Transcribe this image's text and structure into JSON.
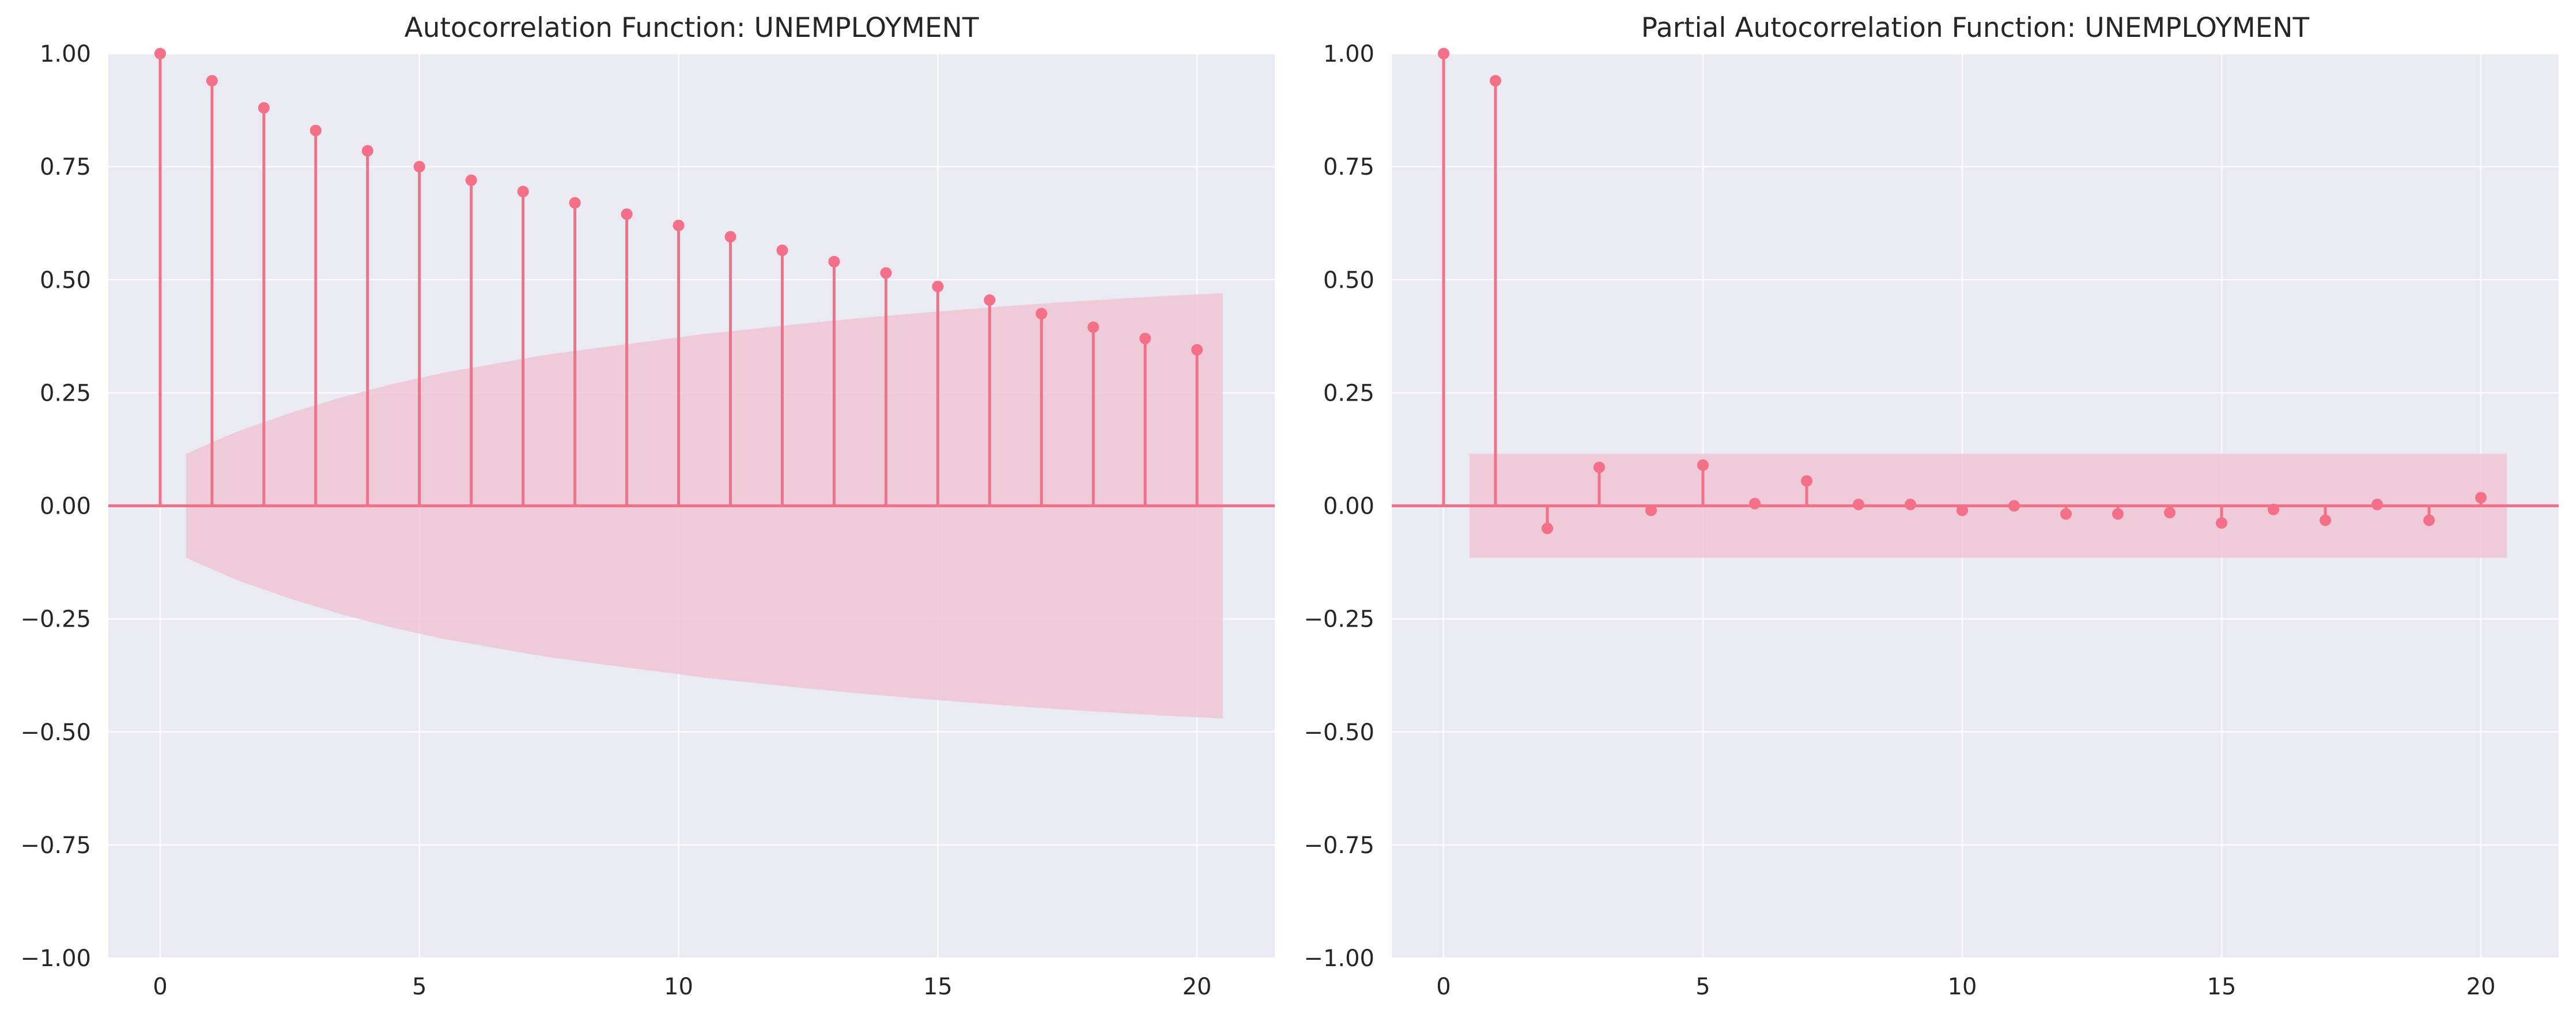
{
  "colors": {
    "background": "#ffffff",
    "plot_bg": "#eaeaf2",
    "grid": "#ffffff",
    "series": "#f37088",
    "confidence_band": "#f0c2d2",
    "text": "#262626"
  },
  "chart_data": [
    {
      "type": "stem",
      "title": "Autocorrelation Function: UNEMPLOYMENT",
      "xlabel": "",
      "ylabel": "",
      "xlim": [
        -1,
        21.5
      ],
      "ylim": [
        -1.0,
        1.0
      ],
      "xticks": [
        0,
        5,
        10,
        15,
        20
      ],
      "yticks": [
        -1.0,
        -0.75,
        -0.5,
        -0.25,
        0.0,
        0.25,
        0.5,
        0.75,
        1.0
      ],
      "xtick_labels": [
        "0",
        "5",
        "10",
        "15",
        "20"
      ],
      "ytick_labels": [
        "−1.00",
        "−0.75",
        "−0.50",
        "−0.25",
        "0.00",
        "0.25",
        "0.50",
        "0.75",
        "1.00"
      ],
      "grid": true,
      "x": [
        0,
        1,
        2,
        3,
        4,
        5,
        6,
        7,
        8,
        9,
        10,
        11,
        12,
        13,
        14,
        15,
        16,
        17,
        18,
        19,
        20
      ],
      "values": [
        1.0,
        0.94,
        0.88,
        0.83,
        0.785,
        0.75,
        0.72,
        0.695,
        0.67,
        0.645,
        0.62,
        0.595,
        0.565,
        0.54,
        0.515,
        0.485,
        0.455,
        0.425,
        0.395,
        0.37,
        0.345
      ],
      "confidence_band": {
        "x": [
          0.5,
          1.5,
          2.5,
          3.5,
          4.5,
          5.5,
          6.5,
          7.5,
          8.5,
          9.5,
          10.5,
          11.5,
          12.5,
          13.5,
          14.5,
          15.5,
          16.5,
          17.5,
          18.5,
          19.5,
          20.5
        ],
        "upper": [
          0.115,
          0.165,
          0.205,
          0.24,
          0.27,
          0.295,
          0.315,
          0.335,
          0.35,
          0.365,
          0.38,
          0.392,
          0.404,
          0.415,
          0.425,
          0.434,
          0.443,
          0.451,
          0.458,
          0.465,
          0.47
        ]
      }
    },
    {
      "type": "stem",
      "title": "Partial Autocorrelation Function: UNEMPLOYMENT",
      "xlabel": "",
      "ylabel": "",
      "xlim": [
        -1,
        21.5
      ],
      "ylim": [
        -1.0,
        1.0
      ],
      "xticks": [
        0,
        5,
        10,
        15,
        20
      ],
      "yticks": [
        -1.0,
        -0.75,
        -0.5,
        -0.25,
        0.0,
        0.25,
        0.5,
        0.75,
        1.0
      ],
      "xtick_labels": [
        "0",
        "5",
        "10",
        "15",
        "20"
      ],
      "ytick_labels": [
        "−1.00",
        "−0.75",
        "−0.50",
        "−0.25",
        "0.00",
        "0.25",
        "0.50",
        "0.75",
        "1.00"
      ],
      "grid": true,
      "x": [
        0,
        1,
        2,
        3,
        4,
        5,
        6,
        7,
        8,
        9,
        10,
        11,
        12,
        13,
        14,
        15,
        16,
        17,
        18,
        19,
        20
      ],
      "values": [
        1.0,
        0.94,
        -0.05,
        0.085,
        -0.01,
        0.09,
        0.005,
        0.055,
        0.003,
        0.003,
        -0.01,
        0.0,
        -0.018,
        -0.018,
        -0.015,
        -0.038,
        -0.008,
        -0.032,
        0.003,
        -0.032,
        0.018
      ],
      "confidence_band": {
        "x": [
          0.5,
          20.5
        ],
        "upper": [
          0.115,
          0.115
        ]
      }
    }
  ]
}
